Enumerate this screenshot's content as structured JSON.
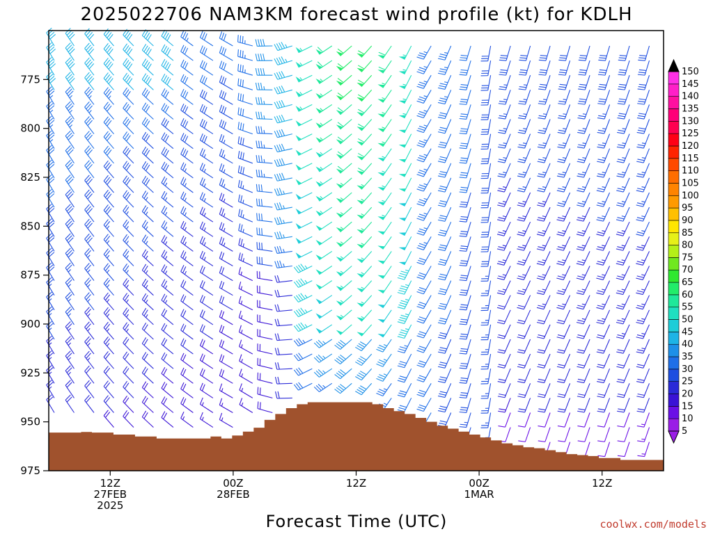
{
  "chart_data": {
    "type": "wind-barb-profile",
    "title": "2025022706 NAM3KM forecast wind profile (kt) for KDLH",
    "xlabel": "Forecast Time (UTC)",
    "ylabel": "",
    "y_axis": {
      "ticks": [
        775,
        800,
        825,
        850,
        875,
        900,
        925,
        950,
        975
      ],
      "ylim": [
        975,
        750
      ],
      "inverted": true
    },
    "x_axis": {
      "ticks": [
        {
          "hour": 6,
          "line1": "12Z",
          "line2": "27FEB",
          "line3": "2025"
        },
        {
          "hour": 18,
          "line1": "00Z",
          "line2": "28FEB",
          "line3": ""
        },
        {
          "hour": 30,
          "line1": "12Z",
          "line2": "",
          "line3": ""
        },
        {
          "hour": 42,
          "line1": "00Z",
          "line2": "1MAR",
          "line3": ""
        },
        {
          "hour": 54,
          "line1": "12Z",
          "line2": "",
          "line3": ""
        }
      ],
      "xlim_forecast_hour": [
        0,
        60
      ]
    },
    "colorbar": {
      "ticks": [
        5,
        10,
        15,
        20,
        25,
        30,
        35,
        40,
        45,
        50,
        55,
        60,
        65,
        70,
        75,
        80,
        85,
        90,
        95,
        100,
        105,
        110,
        115,
        120,
        125,
        130,
        135,
        140,
        145,
        150
      ],
      "colors": [
        "#9a1ee6",
        "#6a0fe6",
        "#3a13d6",
        "#2a2ad8",
        "#1e4ee0",
        "#1f6fe8",
        "#1e90e8",
        "#1eb4e6",
        "#1ecdd8",
        "#1fe0c0",
        "#1fe89a",
        "#22ec6a",
        "#2ee830",
        "#70e820",
        "#b4f018",
        "#e6f018",
        "#ffe600",
        "#ffc000",
        "#ff9a00",
        "#ff8400",
        "#ff6e00",
        "#ff4a00",
        "#ff2400",
        "#ff0016",
        "#ff0050",
        "#ff0078",
        "#ff10a0",
        "#ff20c8",
        "#ff30e6"
      ],
      "units": "kt"
    },
    "terrain": {
      "color": "#a0522d",
      "surface_pressure_hpa": [
        955.5,
        955.5,
        955.5,
        955.2,
        955.5,
        955.5,
        956.5,
        956.5,
        957.5,
        957.5,
        958.5,
        958.5,
        958.5,
        958.5,
        958.5,
        957.5,
        958.5,
        957.0,
        955.0,
        953.0,
        949.0,
        946.0,
        943.0,
        941.0,
        940.0,
        940.0,
        940.0,
        940.0,
        940.0,
        940.0,
        941.0,
        943.0,
        944.5,
        946.0,
        948.0,
        950.0,
        952.0,
        953.5,
        955.0,
        956.5,
        958.0,
        959.5,
        961.0,
        962.0,
        963.0,
        963.5,
        964.5,
        965.5,
        966.5,
        967.0,
        967.5,
        968.5,
        968.5,
        969.5,
        969.5,
        969.5,
        969.5
      ]
    },
    "wind_profile": {
      "description_note": "",
      "barb_times_hour": [
        0,
        60
      ],
      "barb_levels_hpa": [
        760,
        975
      ]
    }
  },
  "credit": "coolwx.com/models"
}
